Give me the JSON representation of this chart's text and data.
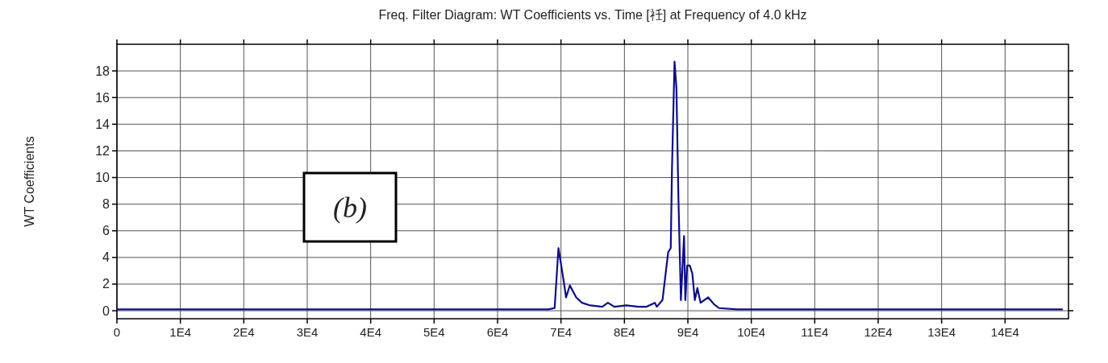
{
  "chart_data": {
    "type": "line",
    "title": "Freq. Filter Diagram: WT Coefficients vs. Time [祍] at Frequency of 4.0 kHz",
    "ylabel": "WT Coefficients",
    "x": [
      0,
      10000,
      20000,
      30000,
      40000,
      50000,
      60000,
      68000,
      69000,
      69600,
      70500,
      70800,
      71400,
      72400,
      73300,
      74600,
      76500,
      77400,
      78400,
      80300,
      82200,
      83500,
      84800,
      85100,
      86000,
      86900,
      87300,
      87500,
      87900,
      88200,
      88500,
      88800,
      88900,
      89400,
      89600,
      89900,
      90300,
      90700,
      91100,
      91500,
      92000,
      93200,
      94100,
      94900,
      97800,
      100000,
      110000,
      120000,
      130000,
      140000,
      149000
    ],
    "series": [
      {
        "color": "#0d0d8a",
        "values": [
          0.1,
          0.1,
          0.1,
          0.1,
          0.1,
          0.1,
          0.1,
          0.1,
          0.2,
          4.7,
          2.0,
          1.0,
          1.9,
          1.0,
          0.6,
          0.4,
          0.3,
          0.6,
          0.3,
          0.4,
          0.3,
          0.3,
          0.6,
          0.3,
          0.8,
          4.4,
          4.7,
          10.7,
          18.7,
          16.7,
          8.7,
          2.8,
          0.8,
          5.6,
          0.8,
          3.4,
          3.4,
          2.8,
          0.8,
          1.7,
          0.6,
          1.0,
          0.5,
          0.2,
          0.1,
          0.1,
          0.1,
          0.1,
          0.1,
          0.1,
          0.1
        ]
      }
    ],
    "xlim": [
      0,
      150000
    ],
    "ylim": [
      -0.6,
      20
    ],
    "xticks": [
      0,
      {
        "value": 10000,
        "label": "1E4"
      },
      {
        "value": 20000,
        "label": "2E4"
      },
      {
        "value": 30000,
        "label": "3E4"
      },
      {
        "value": 40000,
        "label": "4E4"
      },
      {
        "value": 50000,
        "label": "5E4"
      },
      {
        "value": 60000,
        "label": "6E4"
      },
      {
        "value": 70000,
        "label": "7E4"
      },
      {
        "value": 80000,
        "label": "8E4"
      },
      {
        "value": 90000,
        "label": "9E4"
      },
      {
        "value": 100000,
        "label": "10E4"
      },
      {
        "value": 110000,
        "label": "11E4"
      },
      {
        "value": 120000,
        "label": "12E4"
      },
      {
        "value": 130000,
        "label": "13E4"
      },
      {
        "value": 140000,
        "label": "14E4"
      }
    ],
    "yticks": [
      0,
      2,
      4,
      6,
      8,
      10,
      12,
      14,
      16,
      18
    ],
    "grid": true,
    "annotations": [
      "(b)"
    ]
  }
}
